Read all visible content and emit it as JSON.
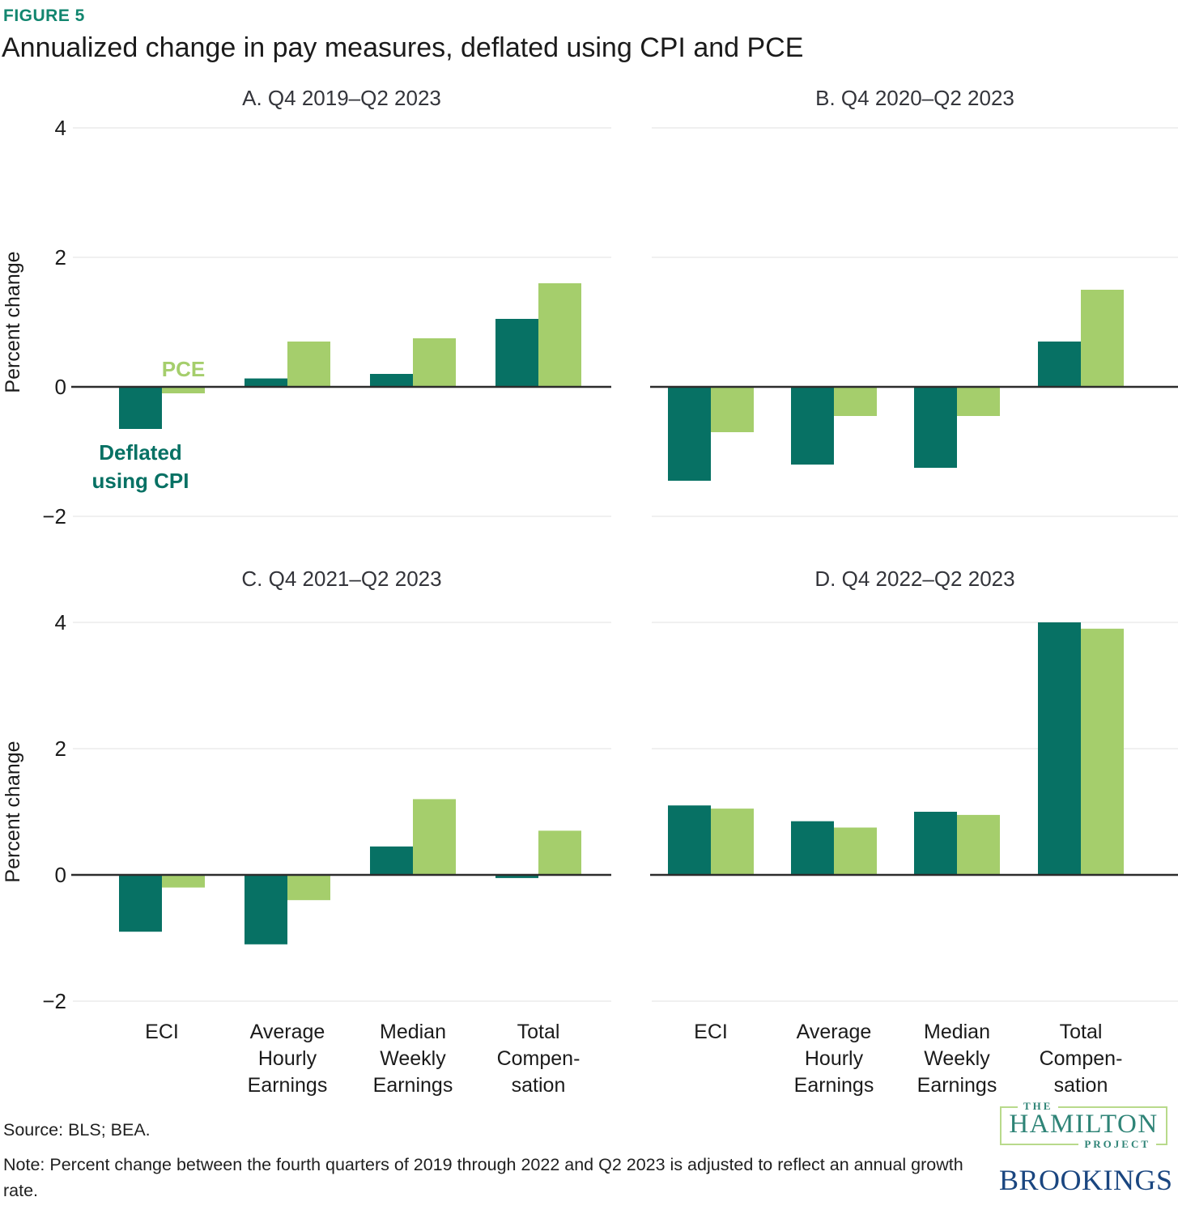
{
  "figure_label": "FIGURE 5",
  "title": "Annualized change in pay measures, deflated using CPI and PCE",
  "ylabel": "Percent change",
  "source": "Source: BLS; BEA.",
  "note": "Note: Percent change between the fourth quarters of 2019 through 2022 and Q2 2023 is adjusted to reflect an annual growth rate.",
  "legend": {
    "pce_label": "PCE",
    "cpi_label_line1": "Deflated",
    "cpi_label_line2": "using CPI"
  },
  "colors": {
    "cpi_bar": "#077164",
    "pce_bar": "#A5CE6C",
    "figure_label": "#12866F",
    "hamilton_teal": "#2F8477",
    "hamilton_border_green": "#B8DA8B",
    "brookings_blue": "#1A4680"
  },
  "logos": {
    "hamilton_the": "THE",
    "hamilton_name": "HAMILTON",
    "hamilton_project": "PROJECT",
    "brookings": "BROOKINGS"
  },
  "chart_data": {
    "type": "bar",
    "grid": true,
    "ylim": [
      -2,
      4
    ],
    "yticks": [
      4,
      2,
      0,
      -2
    ],
    "ylabel": "Percent change",
    "legend_position": "annotated-in-panel-A",
    "series_names": [
      "Deflated using CPI",
      "PCE"
    ],
    "categories": [
      {
        "name": "ECI",
        "lines": [
          "ECI"
        ]
      },
      {
        "name": "Average Hourly Earnings",
        "lines": [
          "Average",
          "Hourly",
          "Earnings"
        ]
      },
      {
        "name": "Median Weekly Earnings",
        "lines": [
          "Median",
          "Weekly",
          "Earnings"
        ]
      },
      {
        "name": "Total Compensation",
        "lines": [
          "Total",
          "Compen-",
          "sation"
        ]
      }
    ],
    "panels": [
      {
        "id": "A",
        "label": "A. Q4 2019–Q2 2023",
        "cpi": [
          -0.65,
          0.13,
          0.2,
          1.05
        ],
        "pce": [
          -0.1,
          0.7,
          0.75,
          1.6
        ]
      },
      {
        "id": "B",
        "label": "B. Q4 2020–Q2 2023",
        "cpi": [
          -1.45,
          -1.2,
          -1.25,
          0.7
        ],
        "pce": [
          -0.7,
          -0.45,
          -0.45,
          1.5
        ]
      },
      {
        "id": "C",
        "label": "C. Q4 2021–Q2 2023",
        "cpi": [
          -0.9,
          -1.1,
          0.45,
          -0.05
        ],
        "pce": [
          -0.2,
          -0.4,
          1.2,
          0.7
        ]
      },
      {
        "id": "D",
        "label": "D. Q4 2022–Q2 2023",
        "cpi": [
          1.1,
          0.85,
          1.0,
          4.0
        ],
        "pce": [
          1.05,
          0.75,
          0.95,
          3.9
        ]
      }
    ]
  }
}
